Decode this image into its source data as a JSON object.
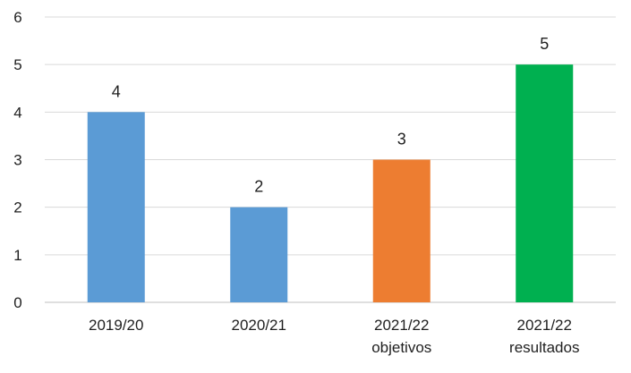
{
  "chart_data": {
    "type": "bar",
    "categories": [
      [
        "2019/20"
      ],
      [
        "2020/21"
      ],
      [
        "2021/22",
        "objetivos"
      ],
      [
        "2021/22",
        "resultados"
      ]
    ],
    "values": [
      4,
      2,
      3,
      5
    ],
    "bar_colors": [
      "#5b9bd5",
      "#5b9bd5",
      "#ed7d31",
      "#00b050"
    ],
    "data_labels": [
      "4",
      "2",
      "3",
      "5"
    ],
    "y_ticks": [
      "0",
      "1",
      "2",
      "3",
      "4",
      "5",
      "6"
    ],
    "ylim": [
      0,
      6
    ],
    "grid": true,
    "gridline_color": "#d9d9d9",
    "axis_color": "#bfbfbf",
    "legend": "none"
  }
}
